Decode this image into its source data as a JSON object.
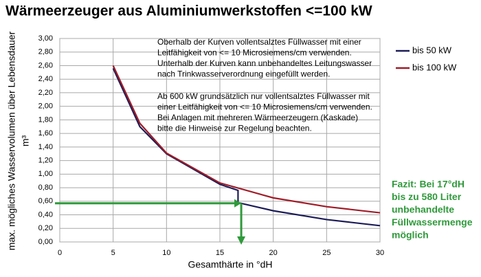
{
  "chart_data": {
    "type": "line",
    "title": "Wärmeerzeuger aus Aluminiumwerkstoffen <=100 kW",
    "y_label": [
      "max. mögliches Wasservolumen über Lebensdauer",
      "m³"
    ],
    "x_label": "Gesamthärte in °dH",
    "xlim": [
      0,
      30
    ],
    "xticks": [
      0,
      5,
      10,
      15,
      20,
      25,
      30
    ],
    "ylim": [
      0,
      3
    ],
    "yticks": [
      {
        "value": 0,
        "label": "0,00"
      },
      {
        "value": 0.2,
        "label": "0,20"
      },
      {
        "value": 0.4,
        "label": "0,40"
      },
      {
        "value": 0.6,
        "label": "0,60"
      },
      {
        "value": 0.8,
        "label": "0,80"
      },
      {
        "value": 1.0,
        "label": "1,00"
      },
      {
        "value": 1.2,
        "label": "1,20"
      },
      {
        "value": 1.4,
        "label": "1,40"
      },
      {
        "value": 1.6,
        "label": "1,60"
      },
      {
        "value": 1.8,
        "label": "1,80"
      },
      {
        "value": 2.0,
        "label": "2,00"
      },
      {
        "value": 2.2,
        "label": "2,20"
      },
      {
        "value": 2.4,
        "label": "2,40"
      },
      {
        "value": 2.6,
        "label": "2,60"
      },
      {
        "value": 2.8,
        "label": "2,80"
      },
      {
        "value": 3.0,
        "label": "3,00"
      }
    ],
    "grid": true,
    "series": [
      {
        "name": "bis 50 kW",
        "color": "#1c1c58",
        "x": [
          5,
          7.5,
          10,
          15,
          16.7,
          16.7,
          20,
          25,
          30
        ],
        "values": [
          2.56,
          1.7,
          1.3,
          0.85,
          0.76,
          0.58,
          0.46,
          0.33,
          0.24
        ]
      },
      {
        "name": "bis 100 kW",
        "color": "#a01c28",
        "x": [
          5,
          7.5,
          10,
          15,
          20,
          25,
          30
        ],
        "values": [
          2.6,
          1.75,
          1.31,
          0.87,
          0.65,
          0.52,
          0.43
        ]
      }
    ],
    "notes": [
      "Oberhalb der Kurven vollentsalztes Füllwasser mit einer",
      "Leitfähigkeit von <= 10 Microsiemens/cm verwenden.",
      "Unterhalb der Kurven  kann unbehandeltes Leitungswasser",
      "nach Trinkwasserverordnung eingefüllt werden.",
      "Ab 600 kW grundsätzlich nur vollentsalztes Füllwasser mit",
      "einer Leitfähigkeit von <= 10 Microsiemens/cm verwenden.",
      "Bei Anlagen mit mehreren Wärmeerzeugern (Kaskade)",
      "bitte die Hinweise zur Regelung beachten."
    ],
    "arrow": {
      "x": 17,
      "y": 0.57,
      "color": "#2e9a3a"
    },
    "conclusion": [
      "Fazit: Bei 17°dH",
      "bis zu 580 Liter",
      "unbehandelte",
      "Füllwassermenge",
      "möglich"
    ]
  }
}
